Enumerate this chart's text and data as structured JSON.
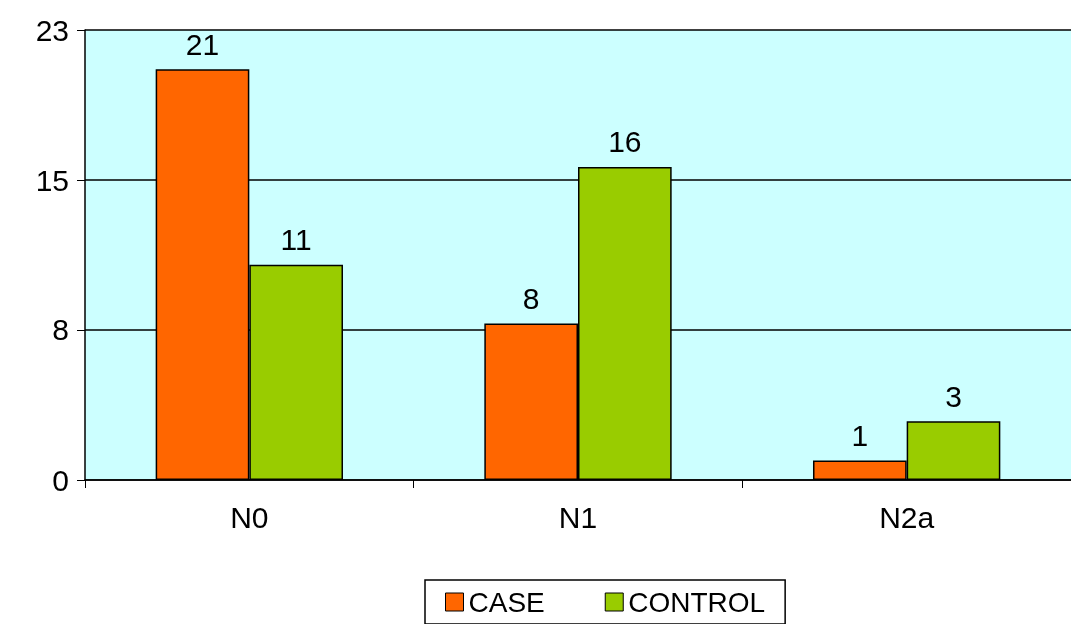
{
  "chart_data": {
    "type": "bar",
    "categories": [
      "N0",
      "N1",
      "N2a"
    ],
    "series": [
      {
        "name": "CASE",
        "color": "#ff6600",
        "values": [
          21,
          8,
          1
        ]
      },
      {
        "name": "CONTROL",
        "color": "#99cc00",
        "values": [
          11,
          16,
          3
        ]
      }
    ],
    "ylim": [
      0,
      23
    ],
    "yticks": [
      0,
      {
        "value": 7.667,
        "label": "8"
      },
      {
        "value": 15.333,
        "label": "15"
      },
      23
    ],
    "grid": "y",
    "legend": "bottom",
    "data_labels": true
  }
}
